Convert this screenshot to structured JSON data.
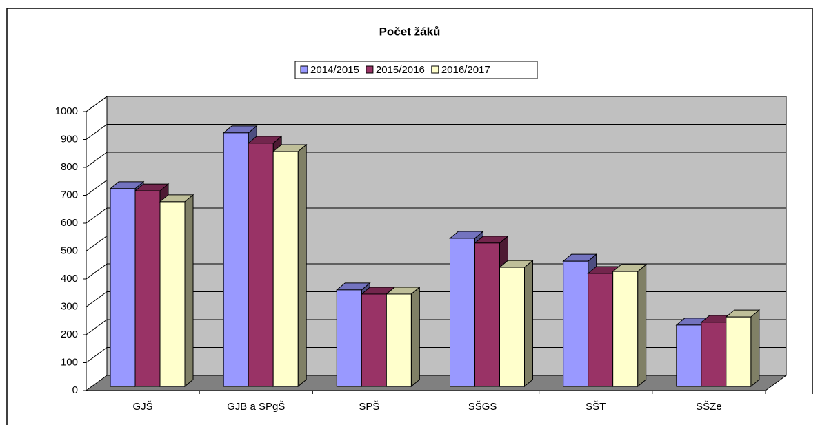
{
  "chart_data": {
    "type": "bar3d",
    "title": "Počet žáků",
    "categories": [
      "GJŠ",
      "GJB a SPgŠ",
      "SPŠ",
      "SŠGS",
      "SŠT",
      "SŠZe"
    ],
    "series": [
      {
        "name": "2014/2015",
        "color": "#9999ff",
        "values": [
          709,
          909,
          346,
          531,
          449,
          220
        ]
      },
      {
        "name": "2015/2016",
        "color": "#993366",
        "values": [
          701,
          872,
          331,
          514,
          405,
          230
        ]
      },
      {
        "name": "2016/2017",
        "color": "#ffffcc",
        "values": [
          662,
          842,
          331,
          427,
          412,
          249
        ]
      }
    ],
    "ylim": [
      0,
      1000
    ],
    "yticks": [
      0,
      100,
      200,
      300,
      400,
      500,
      600,
      700,
      800,
      900,
      1000
    ],
    "grid": true,
    "legend": "top"
  }
}
